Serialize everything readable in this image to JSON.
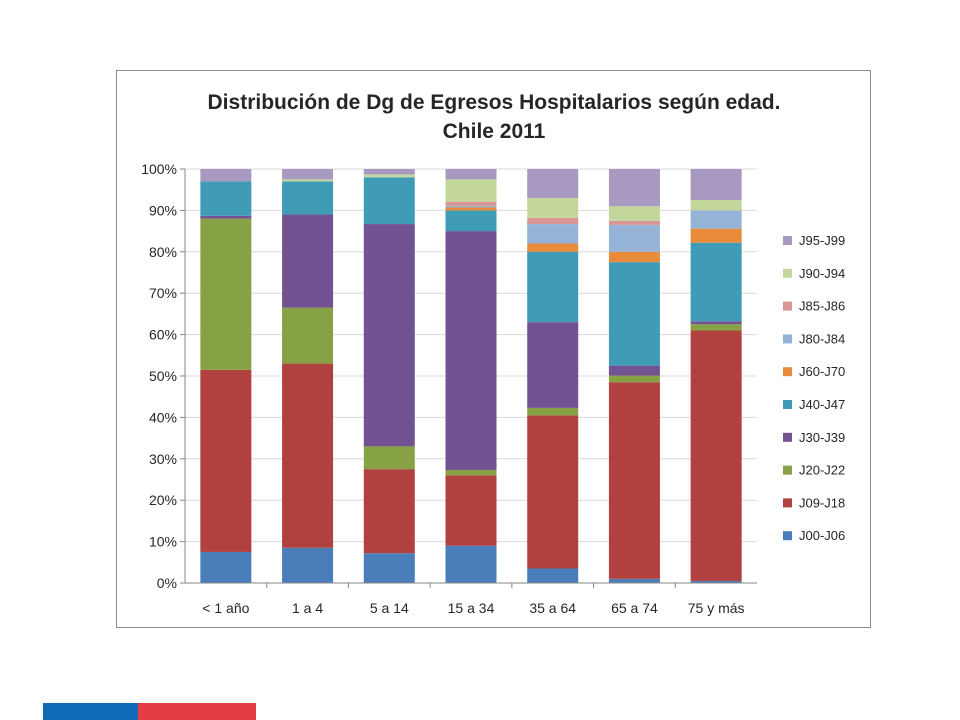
{
  "colors": {
    "brand_blue": "#0f69b4",
    "brand_red": "#e63c46",
    "axis": "#868686",
    "gridline": "#d9d9d9"
  },
  "chart_data": {
    "type": "bar",
    "stacked": "percent",
    "title": [
      "Distribución de Dg de Egresos Hospitalarios según edad.",
      "Chile 2011"
    ],
    "xlabel": "",
    "ylabel": "",
    "ylim": [
      0,
      100
    ],
    "yticks": [
      "0%",
      "10%",
      "20%",
      "30%",
      "40%",
      "50%",
      "60%",
      "70%",
      "80%",
      "90%",
      "100%"
    ],
    "categories": [
      "< 1 año",
      "1 a 4",
      "5 a 14",
      "15 a 34",
      "35 a 64",
      "65 a 74",
      "75 y más"
    ],
    "legend_position": "right",
    "series": [
      {
        "name": "J00-J06",
        "color": "#4a7ebb",
        "values": [
          7.5,
          8.5,
          7.2,
          9,
          3.5,
          1,
          0.5
        ]
      },
      {
        "name": "J09-J18",
        "color": "#b0413e",
        "values": [
          44,
          44.5,
          20.3,
          17,
          37,
          47.5,
          60.5
        ]
      },
      {
        "name": "J20-J22",
        "color": "#86a244",
        "values": [
          36.5,
          13.5,
          5.5,
          1.3,
          1.8,
          1.6,
          1.5
        ]
      },
      {
        "name": "J30-J39",
        "color": "#735292",
        "values": [
          0.7,
          22.5,
          53.7,
          57.7,
          20.7,
          2.4,
          0.7
        ]
      },
      {
        "name": "J40-J47",
        "color": "#3f9bb6",
        "values": [
          8.3,
          8,
          11.3,
          5,
          17,
          25,
          19
        ]
      },
      {
        "name": "J60-J70",
        "color": "#e88b3a",
        "values": [
          0,
          0,
          0,
          0.7,
          2,
          2.5,
          3.4
        ]
      },
      {
        "name": "J80-J84",
        "color": "#95b3d7",
        "values": [
          0,
          0,
          0,
          0.4,
          4.7,
          6.5,
          4.4
        ]
      },
      {
        "name": "J85-J86",
        "color": "#d99694",
        "values": [
          0,
          0,
          0,
          1,
          1.5,
          1,
          0
        ]
      },
      {
        "name": "J90-J94",
        "color": "#c3d69b",
        "values": [
          0,
          0.5,
          0.7,
          5.4,
          4.8,
          3.5,
          2.5
        ]
      },
      {
        "name": "J95-J99",
        "color": "#a899c1",
        "values": [
          3,
          2.5,
          1.3,
          2.5,
          7,
          9,
          7.5
        ]
      }
    ]
  }
}
